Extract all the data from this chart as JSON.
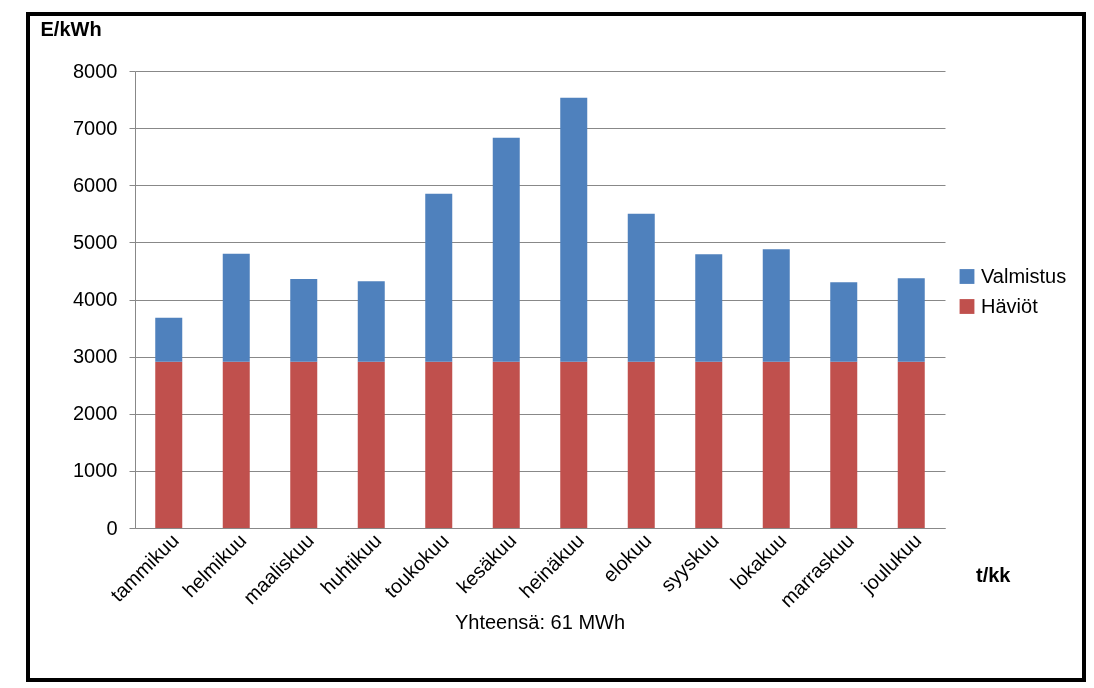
{
  "chart_data": {
    "type": "bar",
    "stacked": true,
    "xlabel": "t/kk",
    "ylabel": "E/kWh",
    "annotations": [
      "Yhteensä: 61 MWh"
    ],
    "categories": [
      "tammikuu",
      "helmikuu",
      "maaliskuu",
      "huhtikuu",
      "toukokuu",
      "kesäkuu",
      "heinäkuu",
      "elokuu",
      "syyskuu",
      "lokakuu",
      "marraskuu",
      "joulukuu"
    ],
    "series": [
      {
        "name": "Häviöt",
        "color": "#c0504d",
        "values": [
          2910,
          2910,
          2910,
          2910,
          2910,
          2910,
          2910,
          2910,
          2910,
          2910,
          2910,
          2910
        ]
      },
      {
        "name": "Valmistus",
        "color": "#4f81bd",
        "values": [
          770,
          1890,
          1450,
          1410,
          2940,
          3920,
          4620,
          2590,
          1880,
          1970,
          1390,
          1460
        ]
      }
    ],
    "ylim": [
      0,
      8000
    ],
    "yticks": [
      0,
      1000,
      2000,
      3000,
      4000,
      5000,
      6000,
      7000,
      8000
    ],
    "grid": "y",
    "legend": "right"
  }
}
